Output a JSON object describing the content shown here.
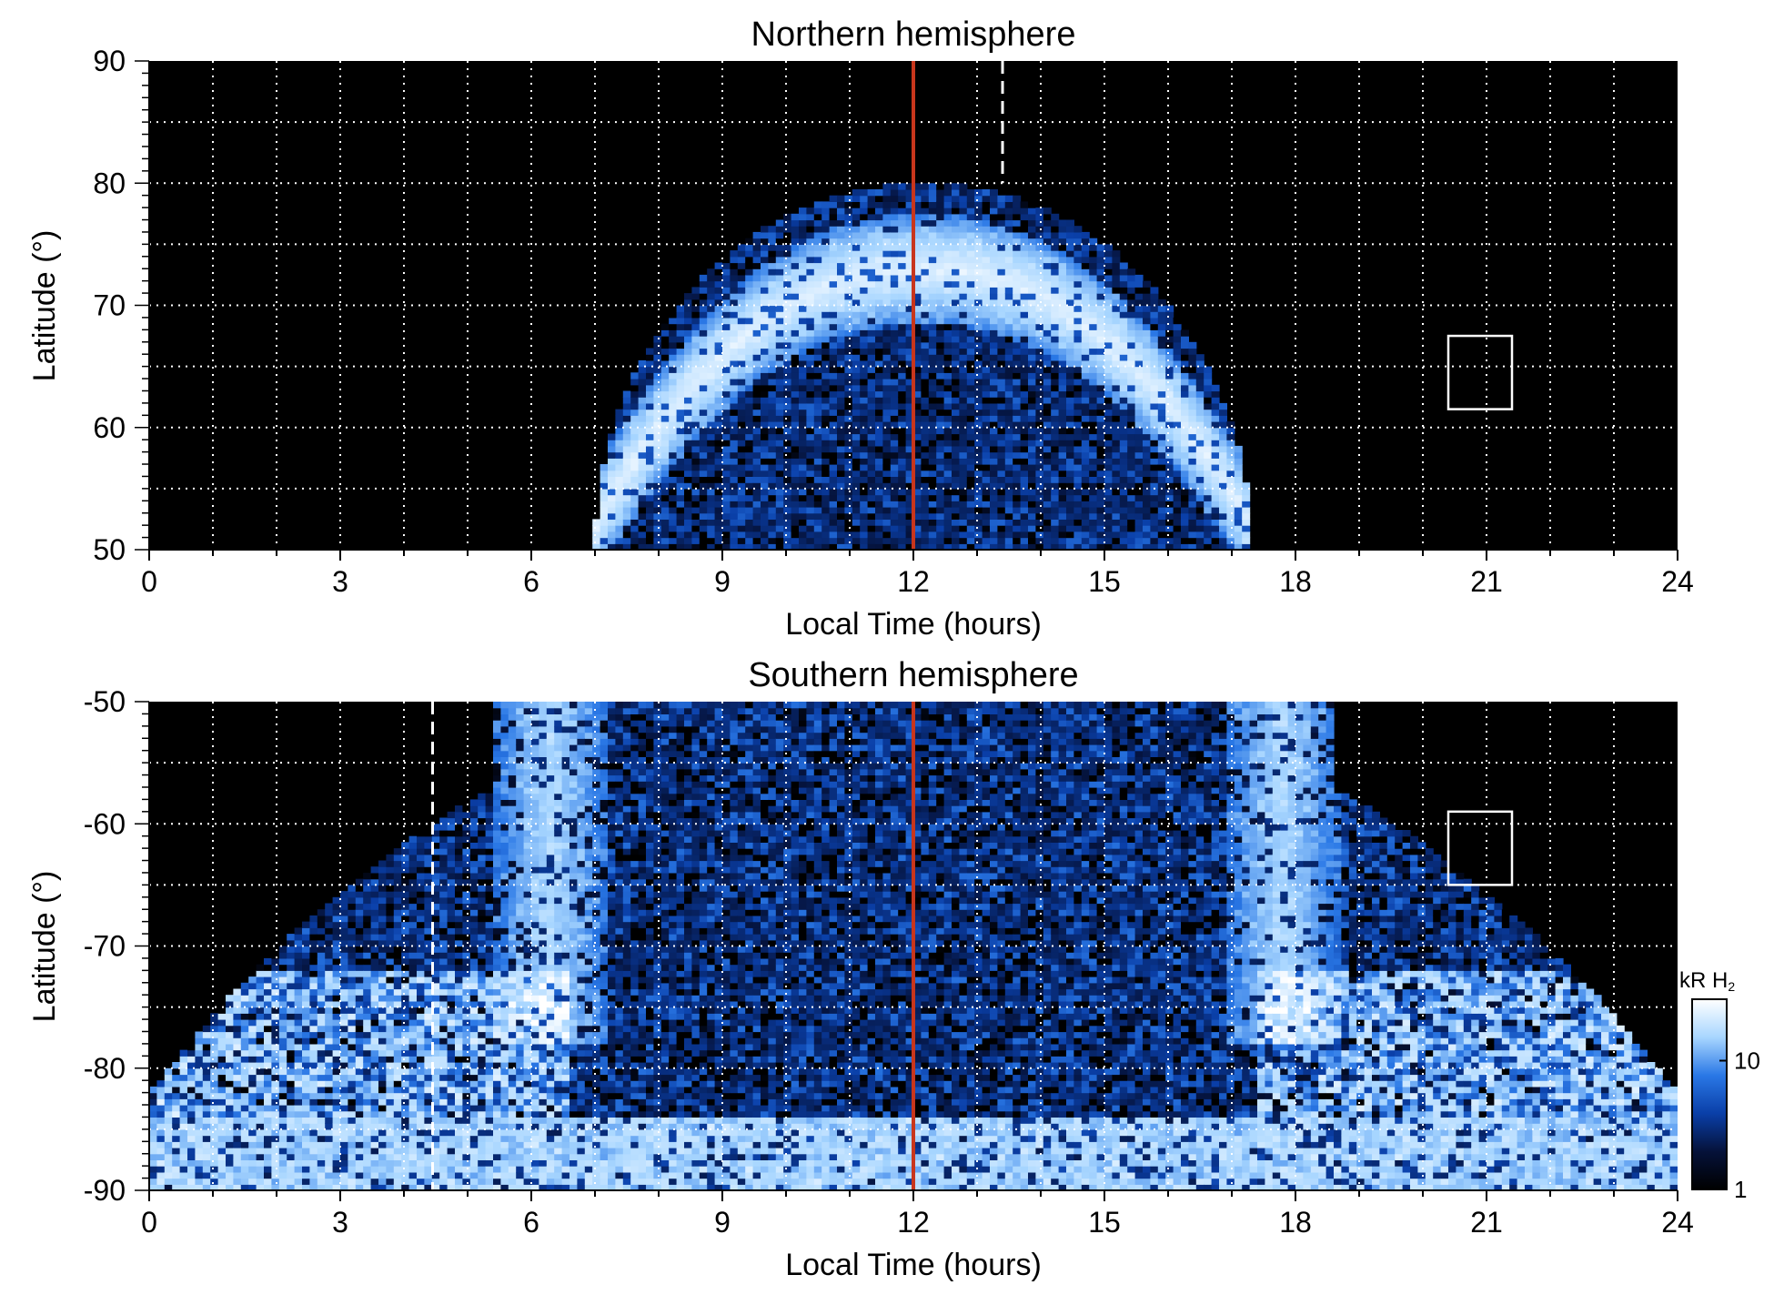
{
  "chart_data": [
    {
      "type": "heatmap",
      "title": "Northern hemisphere",
      "xlabel": "Local Time (hours)",
      "ylabel": "Latitude (°)",
      "xlim": [
        0,
        24
      ],
      "ylim": [
        50,
        90
      ],
      "xticks": [
        "0",
        "3",
        "6",
        "9",
        "12",
        "15",
        "18",
        "21",
        "24"
      ],
      "yticks": [
        "50",
        "60",
        "70",
        "80",
        "90"
      ],
      "grid": true,
      "noon_line_lt": 12,
      "dashed_line": {
        "lt": 13.4,
        "lat_from": 80,
        "lat_to": 90
      },
      "box": {
        "lt_from": 20.4,
        "lt_to": 21.4,
        "lat_from": 61.5,
        "lat_to": 67.5
      },
      "coverage": {
        "lt_start": 7.0,
        "lt_end": 17.3,
        "max_lat": 80
      },
      "oval": {
        "noon_lat": 73,
        "flank_lat": 52,
        "intensity_kR": 20
      },
      "colors": {
        "background": "#000000",
        "noon_line": "#c8361c",
        "grid": "#ffffff"
      }
    },
    {
      "type": "heatmap",
      "title": "Southern hemisphere",
      "xlabel": "Local Time (hours)",
      "ylabel": "Latitude (°)",
      "xlim": [
        0,
        24
      ],
      "ylim": [
        -90,
        -50
      ],
      "xticks": [
        "0",
        "3",
        "6",
        "9",
        "12",
        "15",
        "18",
        "21",
        "24"
      ],
      "yticks": [
        "-90",
        "-80",
        "-70",
        "-60",
        "-50"
      ],
      "grid": true,
      "noon_line_lt": 12,
      "dashed_line": {
        "lt": 4.45,
        "lat_from": -90,
        "lat_to": -50
      },
      "box": {
        "lt_from": 20.4,
        "lt_to": 21.4,
        "lat_from": -65,
        "lat_to": -59
      },
      "coverage": {
        "lt_start": 0,
        "lt_end": 24
      },
      "oval": {
        "noon_lat": -54,
        "flank_lat": -80,
        "intensity_kR": 25
      },
      "colors": {
        "background": "#000000",
        "noon_line": "#c8361c",
        "grid": "#ffffff"
      }
    }
  ],
  "colorbar": {
    "title": "kR H",
    "title_sub": "2",
    "scale": "log",
    "range": [
      1,
      30
    ],
    "ticks": [
      "1",
      "10"
    ],
    "colors": [
      "#000000",
      "#05123a",
      "#0a3fa8",
      "#2a78e6",
      "#a8d6ff",
      "#ffffff"
    ]
  }
}
